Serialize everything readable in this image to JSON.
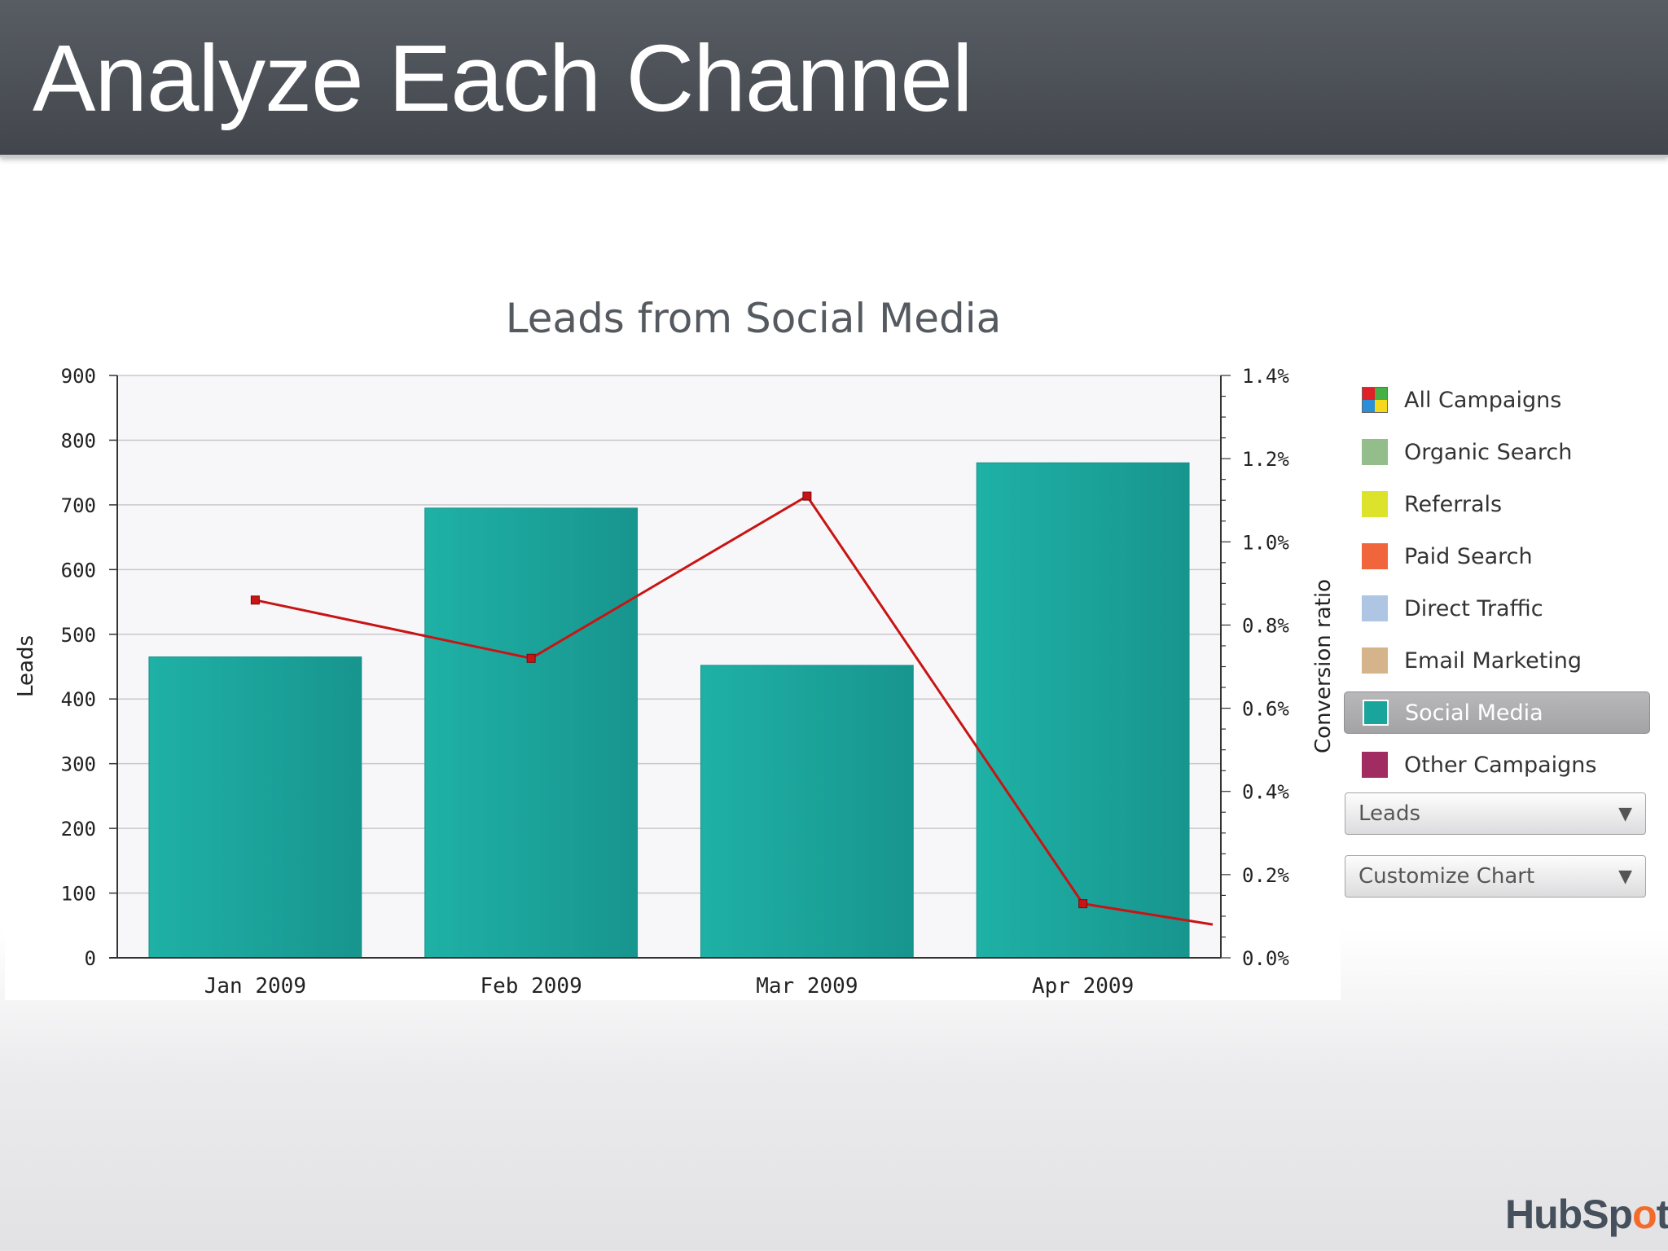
{
  "slide": {
    "title": "Analyze Each Channel"
  },
  "chart_data": {
    "type": "bar",
    "title": "Leads from Social Media",
    "categories": [
      "Jan 2009",
      "Feb 2009",
      "Mar 2009",
      "Apr 2009"
    ],
    "series": [
      {
        "name": "Leads",
        "type": "bar",
        "axis": "left",
        "values": [
          465,
          695,
          452,
          765
        ],
        "color": "#1aa59c"
      },
      {
        "name": "Conversion ratio",
        "type": "line",
        "axis": "right",
        "values": [
          0.86,
          0.72,
          1.11,
          0.13
        ],
        "color": "#c81414"
      }
    ],
    "line_end_value": 0.08,
    "ylabel": "Leads",
    "y2label": "Conversion ratio",
    "ylim": [
      0,
      900
    ],
    "y2lim": [
      0,
      1.4
    ],
    "yticks": [
      "0",
      "100",
      "200",
      "300",
      "400",
      "500",
      "600",
      "700",
      "800",
      "900"
    ],
    "y2ticks": [
      "0.0%",
      "0.2%",
      "0.4%",
      "0.6%",
      "0.8%",
      "1.0%",
      "1.2%",
      "1.4%"
    ],
    "grid": true,
    "legend_position": "right"
  },
  "legend": {
    "items": [
      {
        "label": "All Campaigns",
        "colors": [
          "#e21f26",
          "#45b046",
          "#2a8fd9",
          "#f5d91a"
        ],
        "selected": false
      },
      {
        "label": "Organic Search",
        "color": "#93bd8a",
        "selected": false
      },
      {
        "label": "Referrals",
        "color": "#dde22a",
        "selected": false
      },
      {
        "label": "Paid Search",
        "color": "#f0653b",
        "selected": false
      },
      {
        "label": "Direct Traffic",
        "color": "#afc5e4",
        "selected": false
      },
      {
        "label": "Email Marketing",
        "color": "#d5b48b",
        "selected": false
      },
      {
        "label": "Social Media",
        "color": "#1aa59c",
        "selected": true
      },
      {
        "label": "Other Campaigns",
        "color": "#a02c62",
        "selected": false
      }
    ]
  },
  "controls": {
    "metric_select": "Leads",
    "customize_label": "Customize Chart",
    "arrow": "▼"
  },
  "branding": {
    "logo_text_1": "HubSp",
    "logo_text_2": "o",
    "logo_text_3": "t"
  }
}
